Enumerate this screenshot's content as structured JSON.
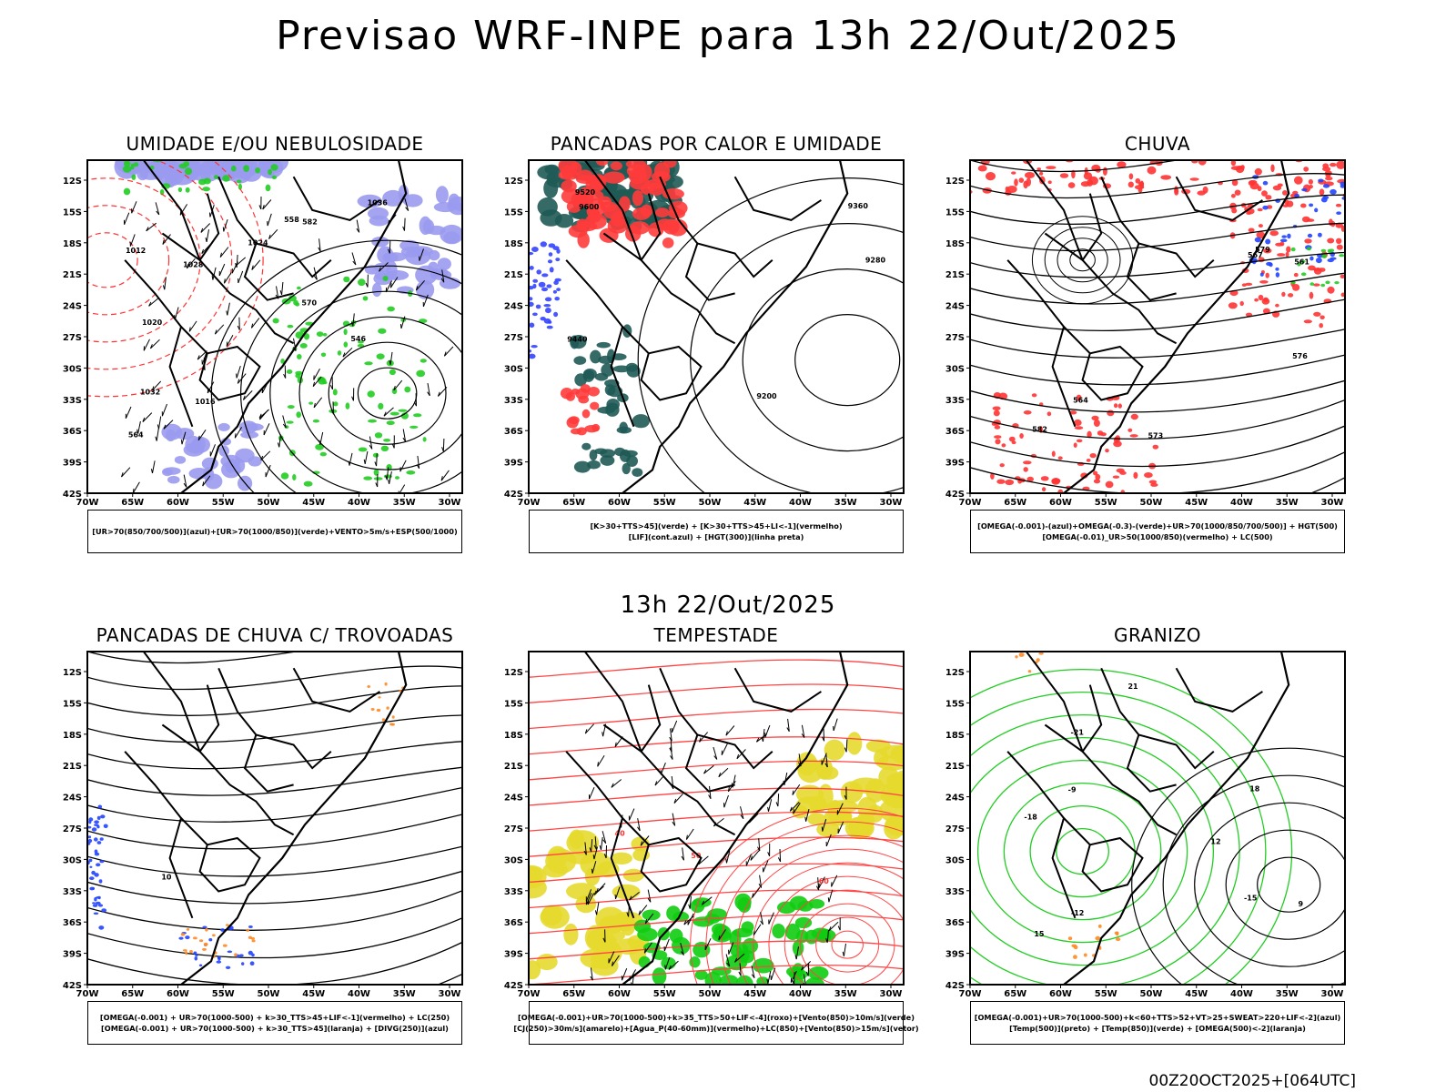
{
  "title": "Previsao WRF-INPE  para 13h 22/Out/2025",
  "subtitle": "13h 22/Out/2025",
  "run_label": "00Z20OCT2025+[064UTC]",
  "axes": {
    "lat_labels": [
      "12S",
      "15S",
      "18S",
      "21S",
      "24S",
      "27S",
      "30S",
      "33S",
      "36S",
      "39S",
      "42S"
    ],
    "lon_labels": [
      "70W",
      "65W",
      "60W",
      "55W",
      "50W",
      "45W",
      "40W",
      "35W",
      "30W"
    ]
  },
  "panels": [
    {
      "id": "umidade",
      "title": "UMIDADE E/OU NEBULOSIDADE",
      "legend": [
        "[UR>70(850/700/500)](azul)+[UR>70(1000/850)](verde)+VENTO>5m/s+ESP(500/1000)"
      ],
      "contour_labels": [
        "1012",
        "1016",
        "1020",
        "1024",
        "1028",
        "1032",
        "1036",
        "570",
        "582",
        "558",
        "546",
        "564"
      ],
      "colors": {
        "fill_primary": "#9a9af0",
        "fill_secondary": "#22cc22",
        "contour": "#000000",
        "dashed": "#ff3333"
      }
    },
    {
      "id": "pancadas_calor",
      "title": "PANCADAS POR CALOR E UMIDADE",
      "legend": [
        "[K>30+TTS>45](verde) + [K>30+TTS>45+LI<-1](vermelho)",
        "[LIF](cont.azul) + [HGT(300)](linha preta)"
      ],
      "contour_labels": [
        "9600",
        "9520",
        "9440",
        "9360",
        "9280",
        "9200"
      ],
      "colors": {
        "fill_primary": "#ff3b3b",
        "fill_secondary": "#1f5a55",
        "contour": "#000000",
        "blue": "#3344ff"
      }
    },
    {
      "id": "chuva",
      "title": "CHUVA",
      "legend": [
        "[OMEGA(-0.001)-(azul)+OMEGA(-0.3)-(verde)+UR>70(1000/850/700/500)] + HGT(500)",
        "[OMEGA(-0.01)_UR>50(1000/850)(vermelho) + LC(500)"
      ],
      "contour_labels": [
        "582",
        "579",
        "576",
        "573",
        "567",
        "564",
        "561"
      ],
      "colors": {
        "fill_primary": "#ff3333",
        "fill_secondary": "#2244ff",
        "fill_tertiary": "#22cc22",
        "contour": "#000000"
      }
    },
    {
      "id": "trovoadas",
      "title": "PANCADAS DE CHUVA C/ TROVOADAS",
      "legend": [
        "[OMEGA(-0.001) + UR>70(1000-500) + k>30_TTS>45+LIF<-1](vermelho) + LC(250)",
        "[OMEGA(-0.001) + UR>70(1000-500) + k>30_TTS>45](laranja) + [DIVG(250)](azul)"
      ],
      "contour_labels": [
        "10"
      ],
      "colors": {
        "fill_primary": "#2244ff",
        "fill_secondary": "#ff8822",
        "contour": "#000000"
      }
    },
    {
      "id": "tempestade",
      "title": "TEMPESTADE",
      "legend": [
        "[OMEGA(-0.001)+UR>70(1000-500)+k>35_TTS>50+LIF<-4](roxo)+[Vento(850)>10m/s](verde)",
        "[CJ(250)>30m/s](amarelo)+[Agua_P(40-60mm)](vermelho)+LC(850)+[Vento(850)>15m/s](vetor)"
      ],
      "contour_labels": [
        "40",
        "50",
        "60"
      ],
      "colors": {
        "fill_primary": "#e6d92e",
        "fill_secondary": "#11cc11",
        "contour": "#ff4444"
      }
    },
    {
      "id": "granizo",
      "title": "GRANIZO",
      "legend": [
        "[OMEGA(-0.001)+UR>70(1000-500)+k<60+TTS>52+VT>25+SWEAT>220+LIF<-2](azul)",
        "[Temp(500)](preto) + [Temp(850)](verde) + [OMEGA(500)<-2](laranja)"
      ],
      "contour_labels": [
        "-9",
        "-12",
        "-15",
        "-18",
        "-21",
        "9",
        "12",
        "15",
        "18",
        "21"
      ],
      "colors": {
        "fill_primary": "#ff8822",
        "contour": "#000000",
        "green": "#22cc22"
      }
    }
  ]
}
